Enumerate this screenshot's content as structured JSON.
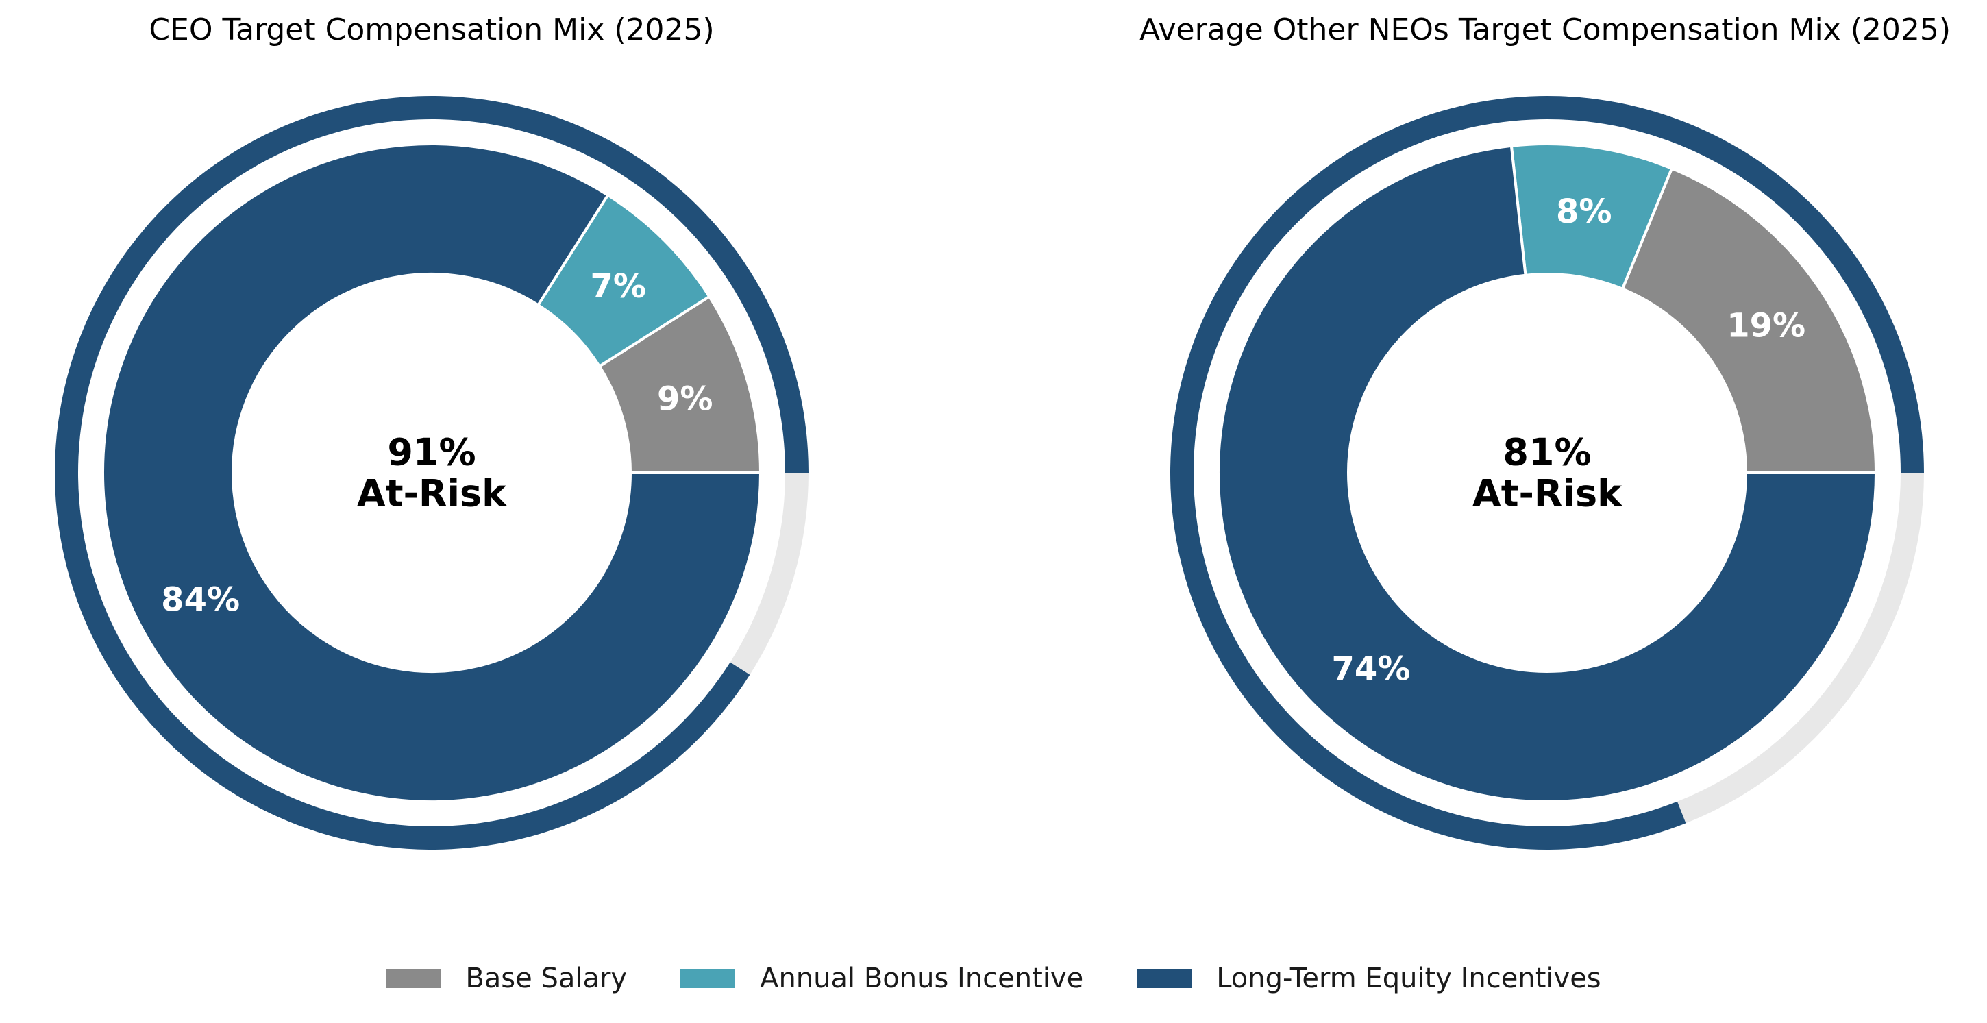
{
  "colors": {
    "base_salary": "#8a8a8a",
    "annual_bonus": "#4aa3b5",
    "long_term_equity": "#214f78",
    "remainder_track": "#e8e8e8"
  },
  "legend": [
    {
      "label": "Base Salary",
      "color": "#8a8a8a"
    },
    {
      "label": "Annual Bonus Incentive",
      "color": "#4aa3b5"
    },
    {
      "label": "Long-Term Equity Incentives",
      "color": "#214f78"
    }
  ],
  "chart_data": [
    {
      "type": "pie",
      "title": "CEO Target Compensation Mix (2025)",
      "categories": [
        "Base Salary",
        "Annual Bonus Incentive",
        "Long-Term Equity Incentives"
      ],
      "values": [
        9,
        7,
        84
      ],
      "value_labels": [
        "9%",
        "7%",
        "84%"
      ],
      "at_risk_percent": 91,
      "center_label": {
        "value": "91%",
        "text": "At-Risk"
      }
    },
    {
      "type": "pie",
      "title": "Average Other NEOs Target Compensation Mix (2025)",
      "categories": [
        "Base Salary",
        "Annual Bonus Incentive",
        "Long-Term Equity Incentives"
      ],
      "values": [
        19,
        8,
        74
      ],
      "value_labels": [
        "19%",
        "8%",
        "74%"
      ],
      "at_risk_percent": 81,
      "center_label": {
        "value": "81%",
        "text": "At-Risk"
      }
    }
  ]
}
